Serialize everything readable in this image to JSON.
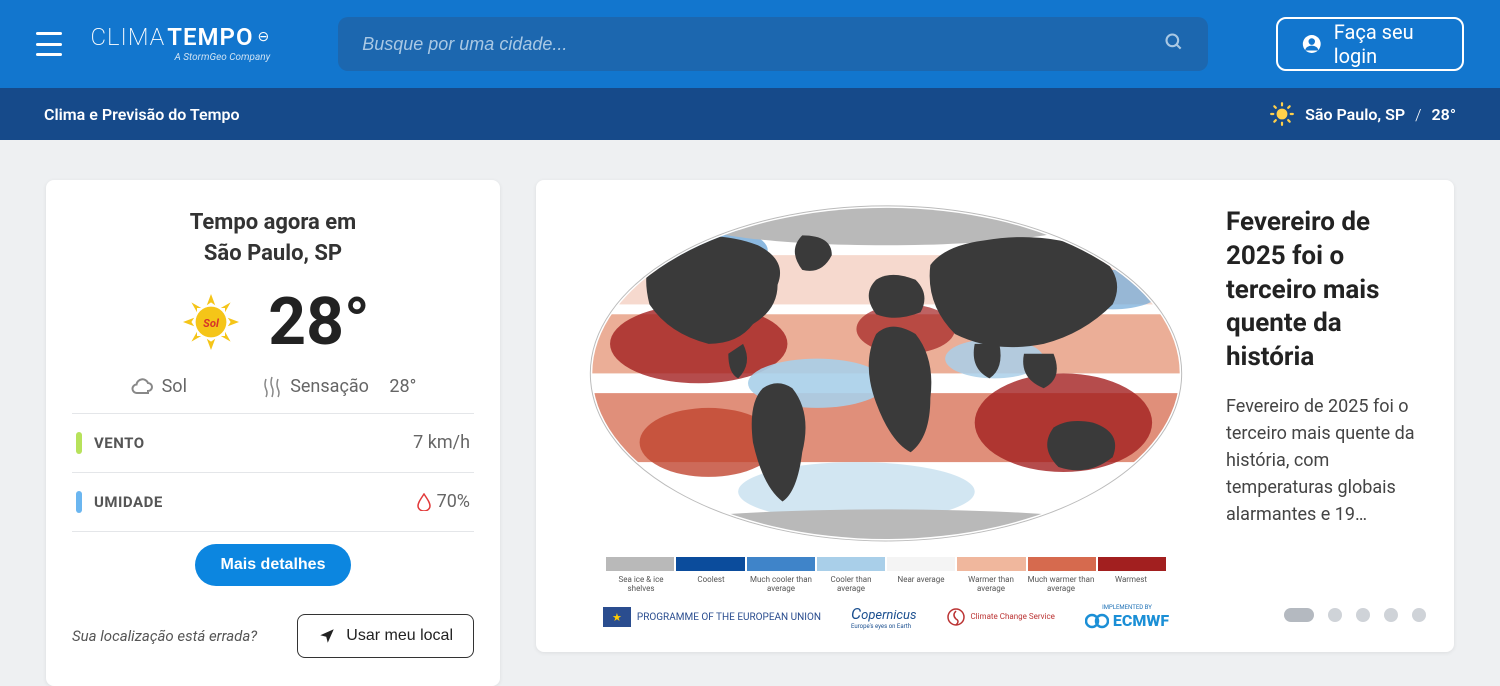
{
  "header": {
    "logo_main": "CLIMATEMPO",
    "logo_sub": "A StormGeo Company",
    "search_placeholder": "Busque por uma cidade...",
    "login_label": "Faça seu login"
  },
  "subheader": {
    "tagline": "Clima e Previsão do Tempo",
    "city": "São Paulo, SP",
    "temp": "28°"
  },
  "weather": {
    "title_line1": "Tempo agora em",
    "title_line2": "São Paulo, SP",
    "temp": "28°",
    "condition": "Sol",
    "feels_label": "Sensação",
    "feels_temp": "28°",
    "wind_label": "VENTO",
    "wind_value": "7 km/h",
    "humidity_label": "UMIDADE",
    "humidity_value": "70%",
    "details_btn": "Mais detalhes",
    "wrong_location": "Sua localização está errada?",
    "use_location_btn": "Usar meu local",
    "colors": {
      "wind_bar": "#b7e25b",
      "humidity_bar": "#6bb6f0",
      "drop": "#e23a3a",
      "details_bg": "#0c86e0"
    }
  },
  "news": {
    "title": "Fevereiro de 2025 foi o terceiro mais quente da história",
    "summary": "Fevereiro de 2025 foi o terceiro mais quente da história, com temperaturas globais alarmantes e 19…",
    "page_count": 5,
    "active_page": 0,
    "map": {
      "legend_colors": [
        "#b9b9b9",
        "#0b4c9c",
        "#3f84c9",
        "#a9cfe9",
        "#f4f4f4",
        "#f0b79d",
        "#d66a4e",
        "#a21f1f"
      ],
      "legend_labels": [
        "Sea ice & ice shelves",
        "Coolest",
        "Much cooler than average",
        "Cooler than average",
        "Near average",
        "Warmer than average",
        "Much warmer than average",
        "Warmest"
      ],
      "land_color": "#3a3a3a",
      "background": "#ffffff"
    },
    "sponsors": {
      "eu_text": "PROGRAMME OF THE EUROPEAN UNION",
      "copernicus": "Copernicus",
      "ccs": "Climate Change Service",
      "ecmwf": "ECMWF",
      "impl": "IMPLEMENTED BY"
    }
  },
  "palette": {
    "header_top": "#1276ce",
    "header_sub": "#164a8a",
    "search_bg": "#1c67af",
    "page_bg": "#eef0f2"
  }
}
